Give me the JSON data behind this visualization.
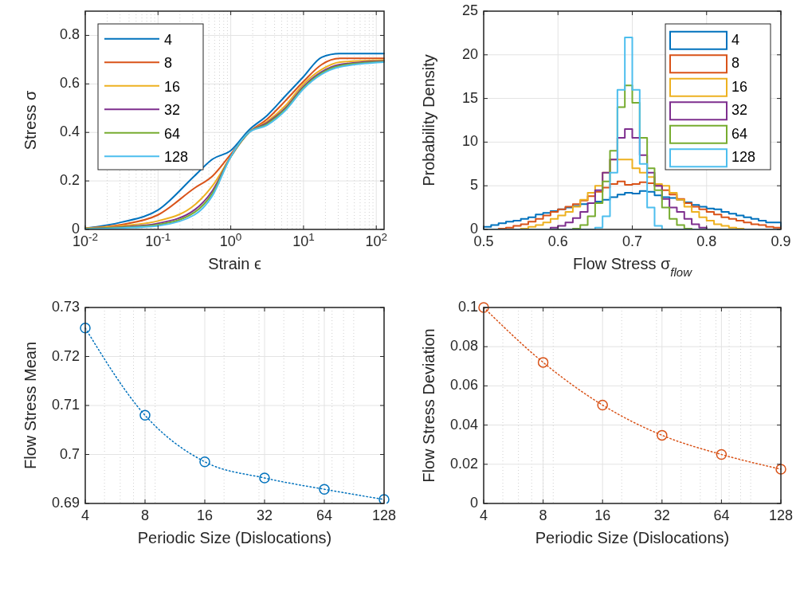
{
  "chart_data": [
    {
      "type": "line",
      "xlabel": "Strain ϵ",
      "ylabel": "Stress σ",
      "log": "x",
      "xlim": [
        0.01,
        128
      ],
      "ylim": [
        0,
        0.9
      ],
      "xticks": [
        {
          "value": 0.01,
          "label": "10$^{-2}$"
        },
        {
          "value": 0.1,
          "label": "10$^{-1}$"
        },
        {
          "value": 1,
          "label": "10$^{0}$"
        },
        {
          "value": 10,
          "label": "10$^{1}$"
        },
        {
          "value": 100,
          "label": "10$^{2}$"
        }
      ],
      "yticks": [
        0,
        0.2,
        0.4,
        0.6,
        0.8
      ],
      "grid": true,
      "legend": "top left",
      "line_style": "solid",
      "marker": "none",
      "x": [
        0.01,
        0.0316,
        0.1,
        0.316,
        0.562,
        1,
        1.78,
        3.16,
        5.62,
        10,
        17.8,
        31.6,
        128
      ],
      "series": [
        {
          "name": "4",
          "color": "#0072bd",
          "values": [
            0.005,
            0.03,
            0.08,
            0.22,
            0.29,
            0.325,
            0.41,
            0.47,
            0.55,
            0.63,
            0.71,
            0.725,
            0.725
          ]
        },
        {
          "name": "8",
          "color": "#d95319",
          "values": [
            0.005,
            0.02,
            0.06,
            0.17,
            0.22,
            0.31,
            0.4,
            0.455,
            0.53,
            0.61,
            0.68,
            0.705,
            0.705
          ]
        },
        {
          "name": "16",
          "color": "#edb120",
          "values": [
            0.005,
            0.015,
            0.035,
            0.1,
            0.18,
            0.3,
            0.4,
            0.445,
            0.51,
            0.6,
            0.66,
            0.69,
            0.698
          ]
        },
        {
          "name": "32",
          "color": "#7e2f8e",
          "values": [
            0.003,
            0.01,
            0.025,
            0.08,
            0.16,
            0.3,
            0.4,
            0.44,
            0.5,
            0.59,
            0.65,
            0.68,
            0.695
          ]
        },
        {
          "name": "64",
          "color": "#77ac30",
          "values": [
            0.003,
            0.008,
            0.02,
            0.07,
            0.15,
            0.3,
            0.4,
            0.435,
            0.495,
            0.585,
            0.645,
            0.675,
            0.692
          ]
        },
        {
          "name": "128",
          "color": "#4dbeee",
          "values": [
            0.002,
            0.006,
            0.015,
            0.06,
            0.14,
            0.3,
            0.4,
            0.43,
            0.49,
            0.58,
            0.64,
            0.67,
            0.69
          ]
        }
      ]
    },
    {
      "type": "histogram",
      "xlabel": "Flow Stress σ$_{flow}$",
      "ylabel": "Probability Density",
      "xlim": [
        0.5,
        0.9
      ],
      "ylim": [
        0,
        25
      ],
      "xticks": [
        0.5,
        0.6,
        0.7,
        0.8,
        0.9
      ],
      "yticks": [
        0,
        5,
        10,
        15,
        20,
        25
      ],
      "grid": true,
      "legend": "top right",
      "bins": [
        0.5,
        0.51,
        0.52,
        0.53,
        0.54,
        0.55,
        0.56,
        0.57,
        0.58,
        0.59,
        0.6,
        0.61,
        0.62,
        0.63,
        0.64,
        0.65,
        0.66,
        0.67,
        0.68,
        0.69,
        0.7,
        0.71,
        0.72,
        0.73,
        0.74,
        0.75,
        0.76,
        0.77,
        0.78,
        0.79,
        0.8,
        0.81,
        0.82,
        0.83,
        0.84,
        0.85,
        0.86,
        0.87,
        0.88,
        0.89,
        0.9
      ],
      "series": [
        {
          "name": "4",
          "color": "#0072bd",
          "values": [
            0.3,
            0.5,
            0.7,
            0.9,
            1.0,
            1.2,
            1.4,
            1.7,
            1.9,
            2.1,
            2.3,
            2.5,
            2.7,
            2.9,
            3.0,
            3.2,
            3.4,
            3.7,
            4.0,
            4.2,
            4.1,
            4.4,
            4.3,
            3.9,
            3.7,
            3.6,
            3.4,
            3.1,
            2.8,
            2.6,
            2.4,
            2.3,
            2.0,
            1.8,
            1.6,
            1.4,
            1.2,
            1.0,
            0.8,
            0.8
          ]
        },
        {
          "name": "8",
          "color": "#d95319",
          "values": [
            0,
            0,
            0.1,
            0.2,
            0.4,
            0.6,
            0.9,
            1.2,
            1.6,
            2.0,
            2.3,
            2.6,
            2.9,
            3.3,
            3.8,
            4.3,
            4.8,
            5.2,
            5.5,
            5.1,
            5.2,
            5.4,
            5.3,
            5.0,
            4.5,
            4.0,
            3.5,
            3.0,
            2.6,
            2.3,
            2.0,
            1.7,
            1.4,
            1.2,
            1.0,
            0.8,
            0.6,
            0.5,
            0.3,
            0.2
          ]
        },
        {
          "name": "16",
          "color": "#edb120",
          "values": [
            0,
            0,
            0,
            0,
            0,
            0.1,
            0.3,
            0.5,
            0.8,
            1.2,
            1.6,
            2.0,
            2.6,
            3.4,
            4.2,
            5.0,
            6.5,
            8.0,
            8.0,
            8.0,
            7.0,
            6.5,
            6.0,
            5.2,
            5.0,
            4.2,
            3.4,
            2.6,
            2.0,
            1.4,
            1.0,
            0.6,
            0.4,
            0.2,
            0.1,
            0,
            0,
            0,
            0,
            0
          ]
        },
        {
          "name": "32",
          "color": "#7e2f8e",
          "values": [
            0,
            0,
            0,
            0,
            0,
            0,
            0,
            0,
            0,
            0.2,
            0.4,
            0.8,
            1.3,
            2.0,
            3.0,
            4.5,
            6.5,
            8.0,
            10.5,
            11.5,
            10.5,
            8.5,
            6.5,
            5.0,
            3.5,
            2.5,
            2.0,
            1.2,
            0.6,
            0.2,
            0,
            0,
            0,
            0,
            0,
            0,
            0,
            0,
            0,
            0
          ]
        },
        {
          "name": "64",
          "color": "#77ac30",
          "values": [
            0,
            0,
            0,
            0,
            0,
            0,
            0,
            0,
            0,
            0,
            0,
            0,
            0.1,
            0.5,
            1.5,
            3.0,
            5.5,
            9.0,
            14.0,
            16.5,
            14.5,
            10.5,
            7.0,
            4.5,
            2.5,
            1.2,
            0.5,
            0.1,
            0,
            0,
            0,
            0,
            0,
            0,
            0,
            0,
            0,
            0,
            0,
            0
          ]
        },
        {
          "name": "128",
          "color": "#4dbeee",
          "values": [
            0,
            0,
            0,
            0,
            0,
            0,
            0,
            0,
            0,
            0,
            0,
            0,
            0,
            0,
            0,
            0.2,
            1.5,
            6.5,
            16,
            22,
            16,
            7.5,
            2.5,
            0.4,
            0,
            0,
            0,
            0,
            0,
            0,
            0,
            0,
            0,
            0,
            0,
            0,
            0,
            0,
            0,
            0
          ]
        }
      ]
    },
    {
      "type": "line",
      "xlabel": "Periodic Size (Dislocations)",
      "ylabel": "Flow Stress Mean",
      "log": "x",
      "xlim": [
        4,
        128
      ],
      "ylim": [
        0.69,
        0.73
      ],
      "xticks": [
        4,
        8,
        16,
        32,
        64,
        128
      ],
      "yticks": [
        0.69,
        0.7,
        0.71,
        0.72,
        0.73
      ],
      "grid": true,
      "marker": "circle",
      "line_style": "dotted",
      "x": [
        4,
        8,
        16,
        32,
        64,
        128
      ],
      "series": [
        {
          "color": "#0072bd",
          "values": [
            0.7258,
            0.708,
            0.6985,
            0.6952,
            0.6929,
            0.6908
          ]
        }
      ]
    },
    {
      "type": "line",
      "xlabel": "Periodic Size (Dislocations)",
      "ylabel": "Flow Stress Deviation",
      "log": "x",
      "xlim": [
        4,
        128
      ],
      "ylim": [
        0,
        0.1
      ],
      "xticks": [
        4,
        8,
        16,
        32,
        64,
        128
      ],
      "yticks": [
        0,
        0.02,
        0.04,
        0.06,
        0.08,
        0.1
      ],
      "grid": true,
      "marker": "circle",
      "line_style": "dotted",
      "x": [
        4,
        8,
        16,
        32,
        64,
        128
      ],
      "series": [
        {
          "color": "#d95319",
          "values": [
            0.1,
            0.072,
            0.0502,
            0.0348,
            0.025,
            0.0175
          ]
        }
      ]
    }
  ]
}
